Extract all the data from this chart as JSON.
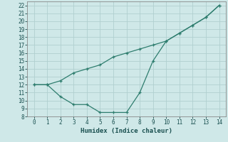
{
  "title": "",
  "xlabel": "Humidex (Indice chaleur)",
  "ylabel": "",
  "background_color": "#cfe8e8",
  "grid_color": "#b0d0d0",
  "line_color": "#2e7d6e",
  "xlim": [
    -0.5,
    14.5
  ],
  "ylim": [
    8,
    22.5
  ],
  "xticks": [
    0,
    1,
    2,
    3,
    4,
    5,
    6,
    7,
    8,
    9,
    10,
    11,
    12,
    13,
    14
  ],
  "yticks": [
    8,
    9,
    10,
    11,
    12,
    13,
    14,
    15,
    16,
    17,
    18,
    19,
    20,
    21,
    22
  ],
  "line1_x": [
    0,
    1,
    2,
    3,
    4,
    5,
    6,
    7,
    8,
    9,
    10,
    11,
    12,
    13,
    14
  ],
  "line1_y": [
    12,
    12,
    12.5,
    13.5,
    14,
    14.5,
    15.5,
    16,
    16.5,
    17,
    17.5,
    18.5,
    19.5,
    20.5,
    22
  ],
  "line2_x": [
    0,
    1,
    2,
    3,
    4,
    5,
    6,
    7,
    8,
    9,
    10,
    11,
    12,
    13,
    14
  ],
  "line2_y": [
    12,
    12,
    10.5,
    9.5,
    9.5,
    8.5,
    8.5,
    8.5,
    11,
    15,
    17.5,
    18.5,
    19.5,
    20.5,
    22
  ]
}
